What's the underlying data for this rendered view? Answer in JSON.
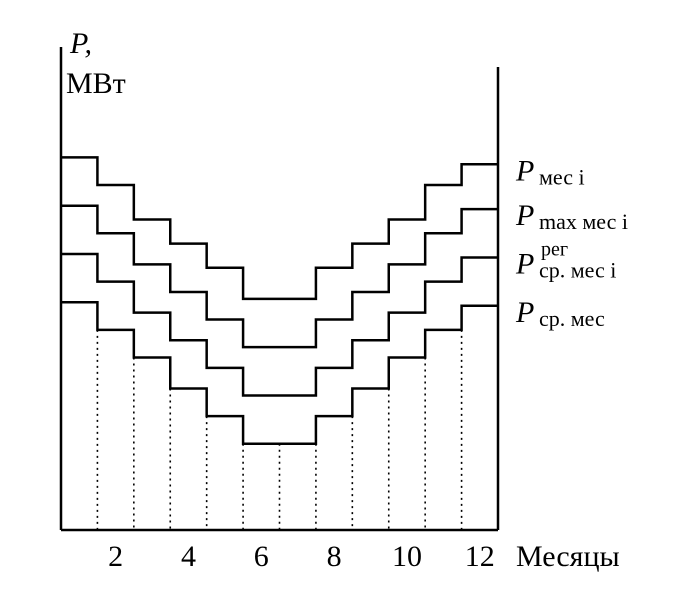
{
  "chart_data": {
    "type": "line",
    "step": true,
    "ylabel_symbol": "P,",
    "ylabel_unit": "МВт",
    "xlabel": "Месяцы",
    "x": [
      1,
      2,
      3,
      4,
      5,
      6,
      7,
      8,
      9,
      10,
      11,
      12
    ],
    "xticks": [
      "2",
      "4",
      "6",
      "8",
      "10",
      "12"
    ],
    "xlim": [
      0,
      12
    ],
    "ylim": [
      0,
      14
    ],
    "grid": false,
    "dotted_month_dividers": true,
    "series": [
      {
        "name_symbol": "P",
        "name_sub": "мес i",
        "name_sup": "",
        "values": [
          10.8,
          10.0,
          9.0,
          8.3,
          7.6,
          6.7,
          6.7,
          7.6,
          8.3,
          9.0,
          10.0,
          10.6
        ]
      },
      {
        "name_symbol": "P",
        "name_sub": "max мес i",
        "name_sup": "",
        "values": [
          9.4,
          8.6,
          7.7,
          6.9,
          6.1,
          5.3,
          5.3,
          6.1,
          6.9,
          7.7,
          8.6,
          9.3
        ]
      },
      {
        "name_symbol": "P",
        "name_sub": "ср. мес i",
        "name_sup": "рег",
        "values": [
          8.0,
          7.2,
          6.3,
          5.5,
          4.7,
          3.9,
          3.9,
          4.7,
          5.5,
          6.3,
          7.2,
          7.9
        ]
      },
      {
        "name_symbol": "P",
        "name_sub": "ср. мес",
        "name_sup": "",
        "values": [
          6.6,
          5.8,
          5.0,
          4.1,
          3.3,
          2.5,
          2.5,
          3.3,
          4.1,
          5.0,
          5.8,
          6.5
        ]
      }
    ]
  }
}
